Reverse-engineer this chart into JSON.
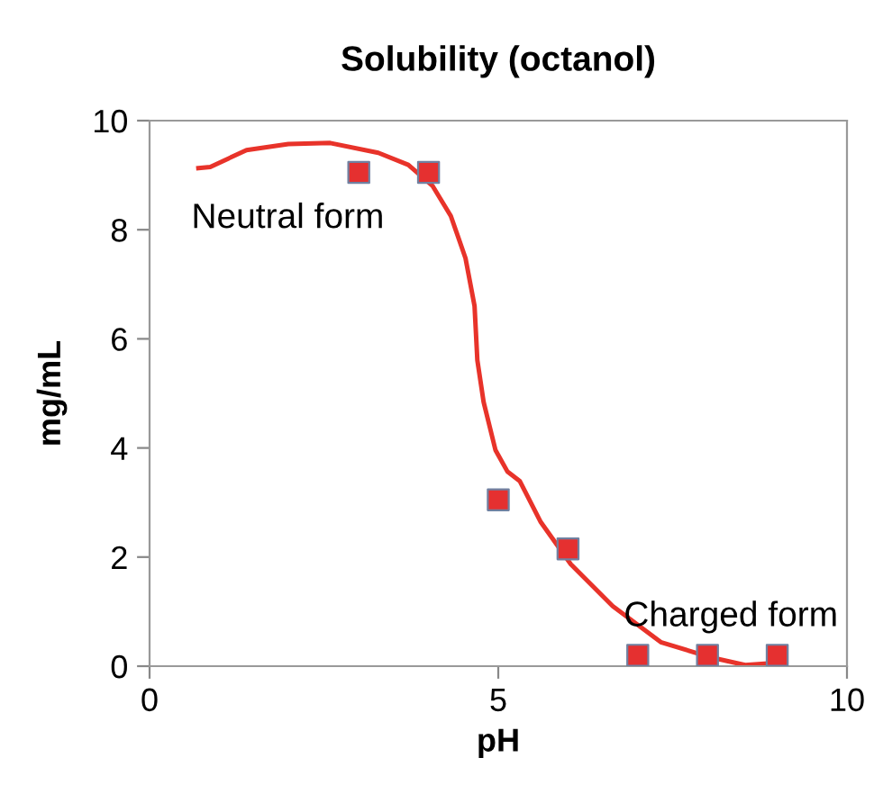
{
  "chart_data": {
    "type": "line",
    "title": "Solubility (octanol)",
    "xlabel": "pH",
    "ylabel": "mg/mL",
    "xlim": [
      0,
      10
    ],
    "xticks": [
      0,
      5,
      10
    ],
    "ylim": [
      0,
      10
    ],
    "yticks": [
      0,
      2,
      4,
      6,
      8,
      10
    ],
    "grid": false,
    "legend": false,
    "series": [
      {
        "color": "#e8332a",
        "marker": "none",
        "line_style": "solid",
        "x": [
          0.7,
          0.87,
          1.39,
          1.99,
          2.59,
          3.28,
          3.71,
          4.06,
          4.32,
          4.53,
          4.66,
          4.7,
          4.79,
          4.96,
          5.13,
          5.31,
          5.61,
          6.04,
          6.64,
          7.33,
          8.02,
          8.54,
          8.97
        ],
        "values": [
          9.13,
          9.15,
          9.46,
          9.57,
          9.59,
          9.41,
          9.19,
          8.8,
          8.25,
          7.48,
          6.6,
          5.61,
          4.84,
          3.96,
          3.57,
          3.39,
          2.64,
          1.87,
          1.1,
          0.44,
          0.17,
          0.02,
          0.06
        ]
      },
      {
        "type": "scatter",
        "color": "#e53030",
        "marker": "square",
        "x": [
          3,
          4,
          5,
          6,
          7,
          8,
          9
        ],
        "values": [
          9.05,
          9.05,
          3.05,
          2.15,
          0.2,
          0.2,
          0.2
        ]
      }
    ],
    "annotations": [
      "Neutral form",
      "Charged form"
    ]
  }
}
